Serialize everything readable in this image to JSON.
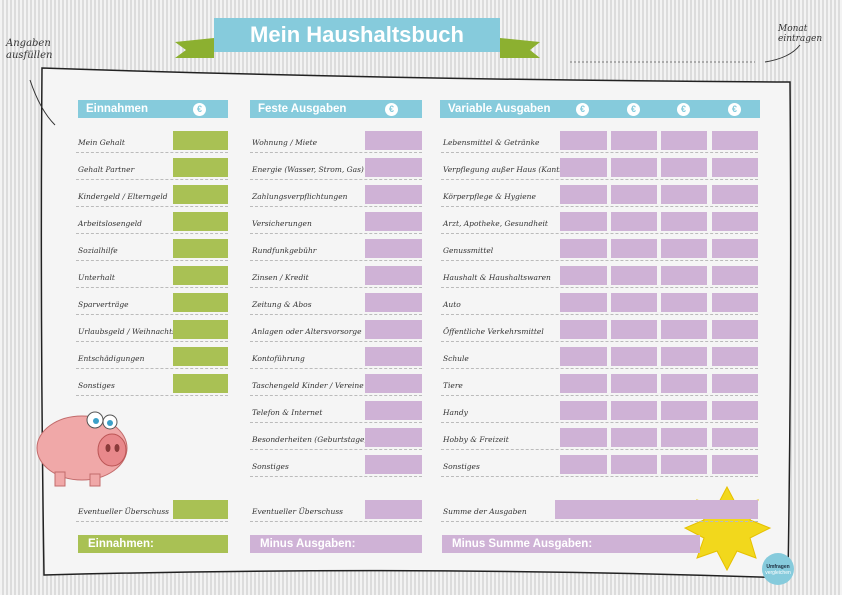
{
  "title": "Mein Haushaltsbuch",
  "notes": {
    "left": "Angaben ausfüllen",
    "right_line1": "Monat",
    "right_line2": "eintragen"
  },
  "currency_symbol": "€",
  "colors": {
    "header": "#86cbdc",
    "income": "#a9c154",
    "expense": "#cfb2d6",
    "star": "#f2d81c"
  },
  "income": {
    "header": "Einnahmen",
    "items": [
      "Mein Gehalt",
      "Gehalt Partner",
      "Kindergeld / Elterngeld",
      "Arbeitslosengeld",
      "Sozialhilfe",
      "Unterhalt",
      "Sparverträge",
      "Urlaubsgeld / Weihnachtsgeld",
      "Entschädigungen",
      "Sonstiges"
    ],
    "surplus_label": "Eventueller Überschuss",
    "total_label": "Einnahmen:"
  },
  "fixed": {
    "header": "Feste Ausgaben",
    "items": [
      "Wohnung / Miete",
      "Energie (Wasser, Strom, Gas)",
      "Zahlungsverpflichtungen",
      "Versicherungen",
      "Rundfunkgebühr",
      "Zinsen / Kredit",
      "Zeitung & Abos",
      "Anlagen oder Altersvorsorge",
      "Kontoführung",
      "Taschengeld Kinder / Vereine",
      "Telefon & Internet",
      "Besonderheiten (Geburtstage)",
      "Sonstiges"
    ],
    "surplus_label": "Eventueller Überschuss",
    "total_label": "Minus Ausgaben:"
  },
  "variable": {
    "header": "Variable Ausgaben",
    "items": [
      "Lebensmittel & Getränke",
      "Verpflegung außer Haus (Kantine)",
      "Körperpflege & Hygiene",
      "Arzt, Apotheke, Gesundheit",
      "Genussmittel",
      "Haushalt & Haushaltswaren",
      "Auto",
      "Öffentliche Verkehrsmittel",
      "Schule",
      "Tiere",
      "Handy",
      "Hobby & Freizeit",
      "Sonstiges"
    ],
    "sum_label": "Summe der Ausgaben",
    "total_label": "Minus Summe Ausgaben:"
  },
  "badge": {
    "line1": "Umfragen",
    "line2": "vergleichen"
  }
}
